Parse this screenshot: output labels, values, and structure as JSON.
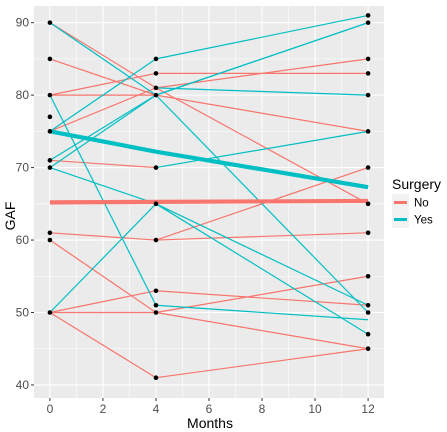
{
  "chart_data": {
    "type": "line",
    "title": "",
    "xlabel": "Months",
    "ylabel": "GAF",
    "xlim": [
      -0.6,
      12.6
    ],
    "ylim": [
      38.2,
      92.3
    ],
    "xticks": [
      0,
      2,
      4,
      6,
      8,
      10,
      12
    ],
    "yticks": [
      40,
      50,
      60,
      70,
      80,
      90
    ],
    "grid": true,
    "panel_background": "#ebebeb",
    "legend": {
      "title": "Surgery",
      "position": "right",
      "entries": [
        {
          "label": "No",
          "color": "#f8766d"
        },
        {
          "label": "Yes",
          "color": "#00bfc4"
        }
      ]
    },
    "series": [
      {
        "name": "No",
        "color": "#f8766d",
        "values": [
          [
            0,
            90
          ],
          [
            4,
            81
          ]
        ]
      },
      {
        "name": "No",
        "color": "#f8766d",
        "values": [
          [
            4,
            81
          ],
          [
            12,
            65
          ]
        ]
      },
      {
        "name": "No",
        "color": "#f8766d",
        "values": [
          [
            0,
            85
          ],
          [
            4,
            80
          ]
        ]
      },
      {
        "name": "No",
        "color": "#f8766d",
        "values": [
          [
            4,
            80
          ],
          [
            12,
            75
          ]
        ]
      },
      {
        "name": "No",
        "color": "#f8766d",
        "values": [
          [
            0,
            80
          ],
          [
            4,
            83
          ]
        ]
      },
      {
        "name": "No",
        "color": "#f8766d",
        "values": [
          [
            4,
            83
          ],
          [
            12,
            83
          ]
        ]
      },
      {
        "name": "No",
        "color": "#f8766d",
        "values": [
          [
            0,
            80
          ],
          [
            4,
            80
          ]
        ]
      },
      {
        "name": "No",
        "color": "#f8766d",
        "values": [
          [
            0,
            75
          ],
          [
            4,
            81
          ]
        ]
      },
      {
        "name": "No",
        "color": "#f8766d",
        "values": [
          [
            4,
            81
          ],
          [
            12,
            85
          ]
        ]
      },
      {
        "name": "No",
        "color": "#f8766d",
        "values": [
          [
            0,
            71
          ],
          [
            4,
            70
          ]
        ]
      },
      {
        "name": "No",
        "color": "#f8766d",
        "values": [
          [
            4,
            60
          ],
          [
            12,
            70
          ]
        ]
      },
      {
        "name": "No",
        "color": "#f8766d",
        "values": [
          [
            0,
            61
          ],
          [
            4,
            60
          ]
        ]
      },
      {
        "name": "No",
        "color": "#f8766d",
        "values": [
          [
            4,
            60
          ],
          [
            12,
            61
          ]
        ]
      },
      {
        "name": "No",
        "color": "#f8766d",
        "values": [
          [
            0,
            60
          ],
          [
            4,
            50
          ]
        ]
      },
      {
        "name": "No",
        "color": "#f8766d",
        "values": [
          [
            4,
            50
          ],
          [
            12,
            45
          ]
        ]
      },
      {
        "name": "No",
        "color": "#f8766d",
        "values": [
          [
            0,
            50
          ],
          [
            4,
            53
          ]
        ]
      },
      {
        "name": "No",
        "color": "#f8766d",
        "values": [
          [
            4,
            53
          ],
          [
            12,
            51
          ]
        ]
      },
      {
        "name": "No",
        "color": "#f8766d",
        "values": [
          [
            0,
            50
          ],
          [
            4,
            50
          ]
        ]
      },
      {
        "name": "No",
        "color": "#f8766d",
        "values": [
          [
            4,
            50
          ],
          [
            12,
            55
          ]
        ]
      },
      {
        "name": "No",
        "color": "#f8766d",
        "values": [
          [
            0,
            50
          ],
          [
            4,
            41
          ]
        ]
      },
      {
        "name": "No",
        "color": "#f8766d",
        "values": [
          [
            4,
            41
          ],
          [
            12,
            45
          ]
        ]
      },
      {
        "name": "Yes",
        "color": "#00bfc4",
        "values": [
          [
            0,
            90
          ],
          [
            4,
            80
          ]
        ]
      },
      {
        "name": "Yes",
        "color": "#00bfc4",
        "values": [
          [
            4,
            80
          ],
          [
            12,
            90
          ]
        ]
      },
      {
        "name": "Yes",
        "color": "#00bfc4",
        "values": [
          [
            0,
            80
          ],
          [
            4,
            51
          ]
        ]
      },
      {
        "name": "Yes",
        "color": "#00bfc4",
        "values": [
          [
            0,
            75
          ],
          [
            4,
            85
          ]
        ]
      },
      {
        "name": "Yes",
        "color": "#00bfc4",
        "values": [
          [
            4,
            85
          ],
          [
            12,
            91
          ]
        ]
      },
      {
        "name": "Yes",
        "color": "#00bfc4",
        "values": [
          [
            0,
            71
          ],
          [
            4,
            80
          ]
        ]
      },
      {
        "name": "Yes",
        "color": "#00bfc4",
        "values": [
          [
            4,
            80
          ],
          [
            12,
            90
          ]
        ]
      },
      {
        "name": "Yes",
        "color": "#00bfc4",
        "values": [
          [
            0,
            70
          ],
          [
            4,
            80
          ]
        ]
      },
      {
        "name": "Yes",
        "color": "#00bfc4",
        "values": [
          [
            4,
            80
          ],
          [
            12,
            50
          ]
        ]
      },
      {
        "name": "Yes",
        "color": "#00bfc4",
        "values": [
          [
            0,
            70
          ],
          [
            4,
            65
          ]
        ]
      },
      {
        "name": "Yes",
        "color": "#00bfc4",
        "values": [
          [
            4,
            65
          ],
          [
            12,
            47
          ]
        ]
      },
      {
        "name": "Yes",
        "color": "#00bfc4",
        "values": [
          [
            4,
            70
          ],
          [
            12,
            75
          ]
        ]
      },
      {
        "name": "Yes",
        "color": "#00bfc4",
        "values": [
          [
            4,
            81
          ],
          [
            12,
            80
          ]
        ]
      },
      {
        "name": "Yes",
        "color": "#00bfc4",
        "values": [
          [
            4,
            51
          ],
          [
            12,
            49
          ]
        ]
      },
      {
        "name": "Yes",
        "color": "#00bfc4",
        "values": [
          [
            0,
            50
          ],
          [
            4,
            65
          ]
        ]
      },
      {
        "name": "Yes",
        "color": "#00bfc4",
        "values": [
          [
            4,
            65
          ],
          [
            12,
            51
          ]
        ]
      }
    ],
    "mean_lines": [
      {
        "name": "No",
        "color": "#f8766d",
        "values": [
          [
            0,
            65.2
          ],
          [
            12,
            65.4
          ]
        ]
      },
      {
        "name": "Yes",
        "color": "#00bfc4",
        "values": [
          [
            0,
            75
          ],
          [
            4,
            72.2
          ],
          [
            12,
            67.3
          ]
        ]
      }
    ],
    "points": [
      [
        0,
        90
      ],
      [
        0,
        85
      ],
      [
        0,
        80
      ],
      [
        0,
        77
      ],
      [
        0,
        75
      ],
      [
        0,
        71
      ],
      [
        0,
        70
      ],
      [
        0,
        61
      ],
      [
        0,
        60
      ],
      [
        0,
        50
      ],
      [
        4,
        85
      ],
      [
        4,
        83
      ],
      [
        4,
        81
      ],
      [
        4,
        80
      ],
      [
        4,
        70
      ],
      [
        4,
        65
      ],
      [
        4,
        60
      ],
      [
        4,
        53
      ],
      [
        4,
        51
      ],
      [
        4,
        50
      ],
      [
        4,
        41
      ],
      [
        12,
        91
      ],
      [
        12,
        90
      ],
      [
        12,
        85
      ],
      [
        12,
        83
      ],
      [
        12,
        80
      ],
      [
        12,
        75
      ],
      [
        12,
        70
      ],
      [
        12,
        65
      ],
      [
        12,
        61
      ],
      [
        12,
        55
      ],
      [
        12,
        51
      ],
      [
        12,
        50
      ],
      [
        12,
        47
      ],
      [
        12,
        45
      ]
    ]
  }
}
